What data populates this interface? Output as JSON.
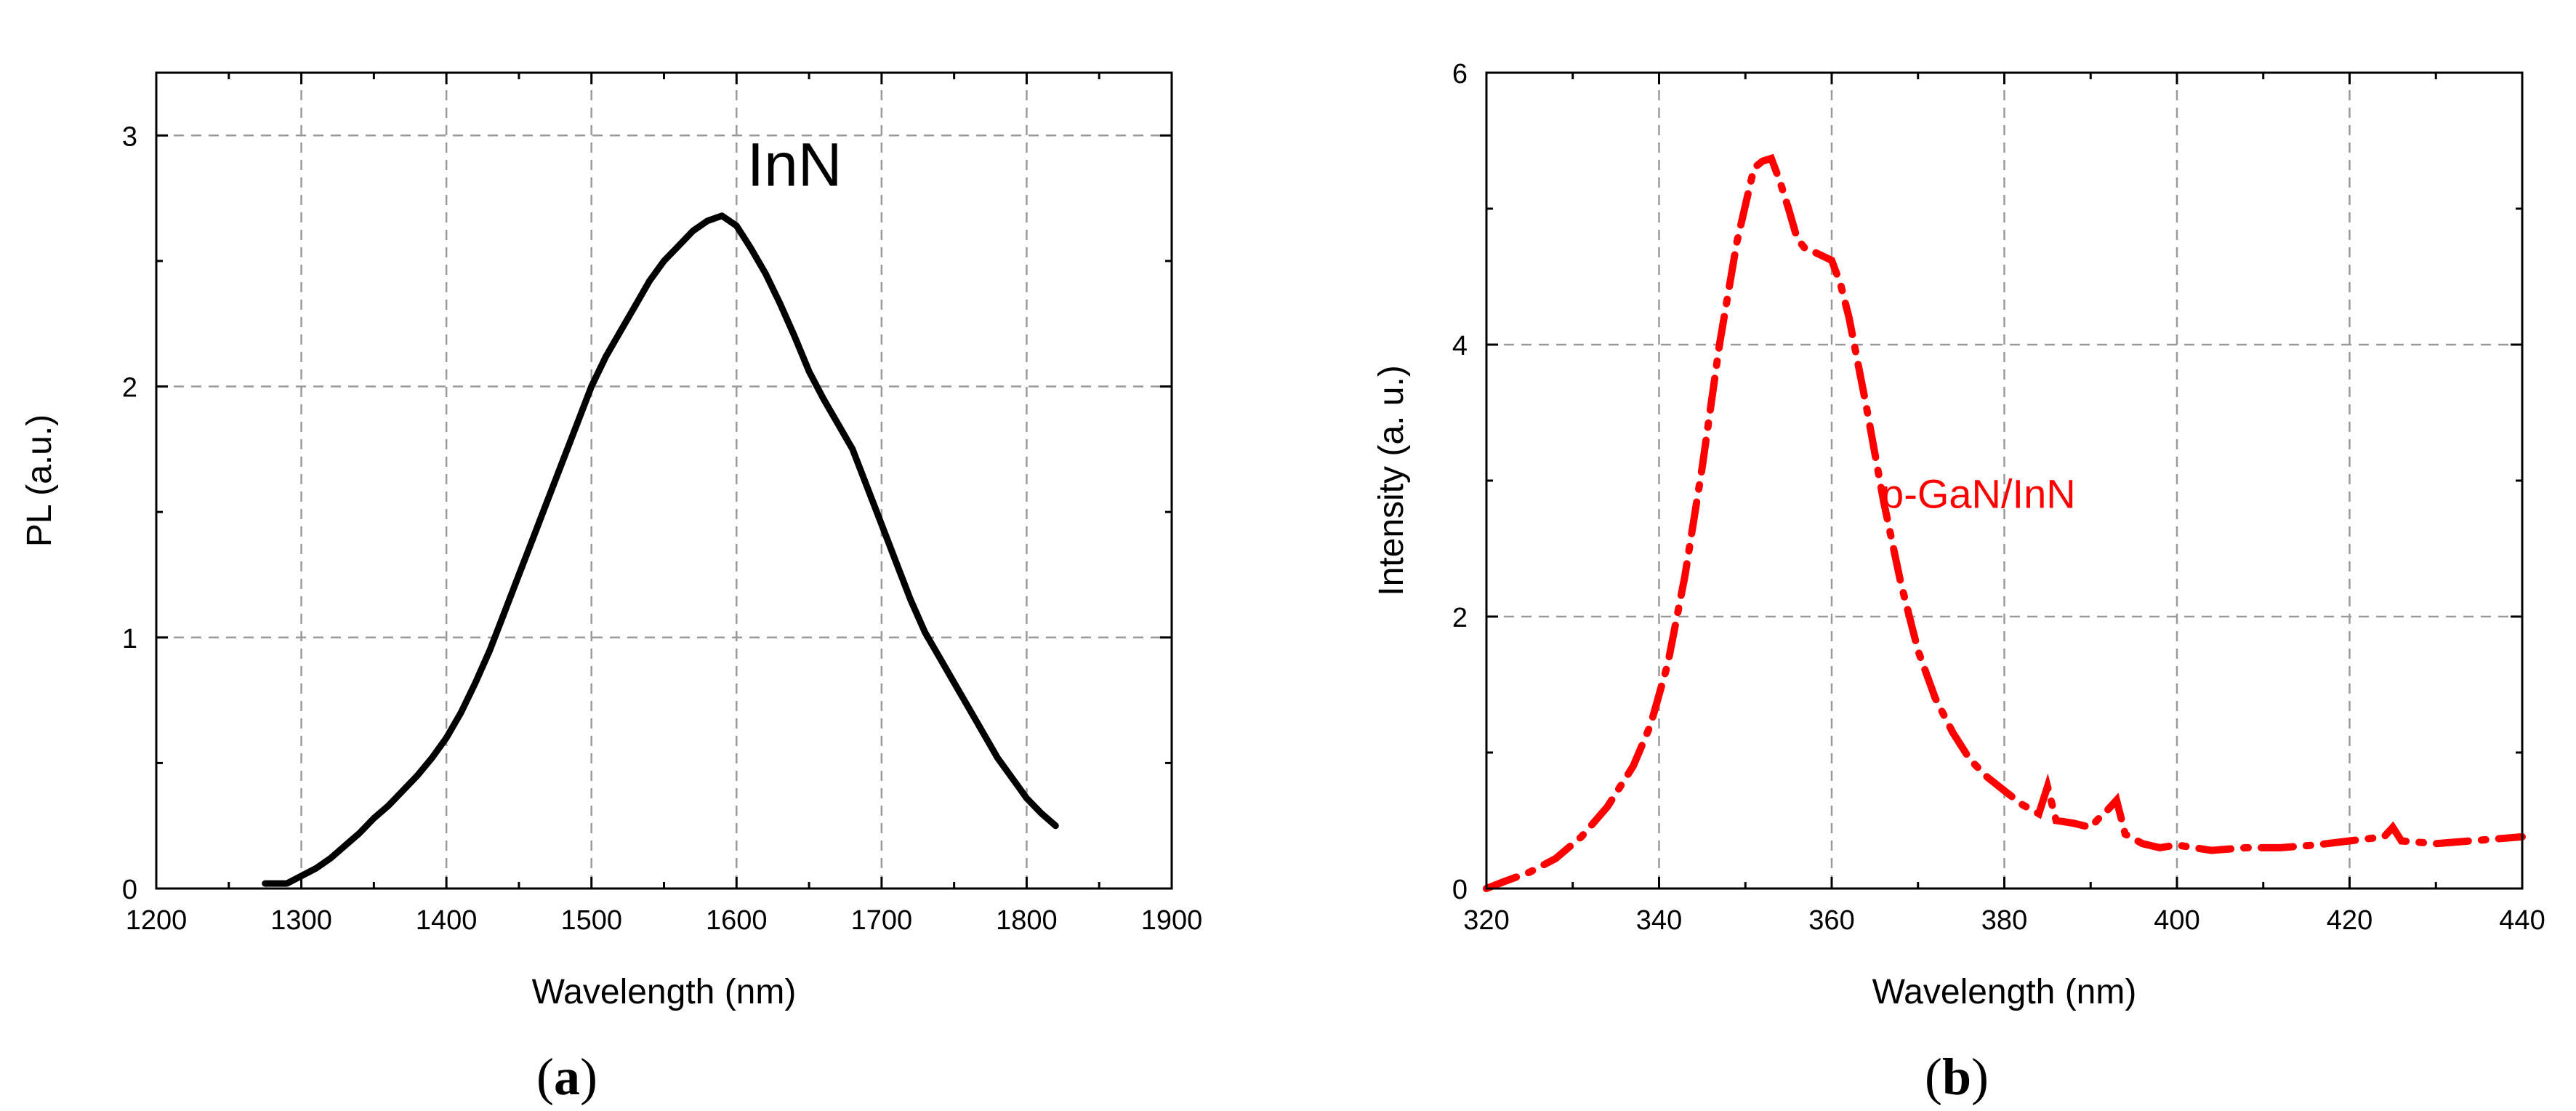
{
  "chart_data": [
    {
      "type": "line",
      "panel_label": "a",
      "title": "",
      "xlabel": "Wavelength (nm)",
      "ylabel": "PL (a.u.)",
      "xlim": [
        1200,
        1900
      ],
      "ylim": [
        0,
        3.25
      ],
      "xticks": [
        1200,
        1300,
        1400,
        1500,
        1600,
        1700,
        1800,
        1900
      ],
      "yticks": [
        0,
        1,
        2,
        3
      ],
      "grid": true,
      "line_color": "#000000",
      "line_style": "solid",
      "annotation": {
        "text": "InN",
        "x": 1640,
        "y": 2.8
      },
      "series": [
        {
          "name": "InN",
          "x": [
            1275,
            1290,
            1300,
            1310,
            1320,
            1330,
            1340,
            1350,
            1360,
            1370,
            1380,
            1390,
            1400,
            1410,
            1420,
            1430,
            1440,
            1450,
            1460,
            1470,
            1480,
            1490,
            1500,
            1510,
            1520,
            1530,
            1540,
            1550,
            1560,
            1570,
            1580,
            1590,
            1600,
            1610,
            1620,
            1630,
            1640,
            1650,
            1660,
            1670,
            1680,
            1690,
            1700,
            1710,
            1720,
            1730,
            1740,
            1750,
            1760,
            1770,
            1780,
            1790,
            1800,
            1810,
            1820
          ],
          "values": [
            0.02,
            0.02,
            0.05,
            0.08,
            0.12,
            0.17,
            0.22,
            0.28,
            0.33,
            0.39,
            0.45,
            0.52,
            0.6,
            0.7,
            0.82,
            0.95,
            1.1,
            1.25,
            1.4,
            1.55,
            1.7,
            1.85,
            2.0,
            2.12,
            2.22,
            2.32,
            2.42,
            2.5,
            2.56,
            2.62,
            2.66,
            2.68,
            2.64,
            2.55,
            2.45,
            2.33,
            2.2,
            2.06,
            1.95,
            1.85,
            1.75,
            1.6,
            1.45,
            1.3,
            1.15,
            1.02,
            0.92,
            0.82,
            0.72,
            0.62,
            0.52,
            0.44,
            0.36,
            0.3,
            0.25
          ]
        }
      ]
    },
    {
      "type": "line",
      "panel_label": "b",
      "title": "",
      "xlabel": "Wavelength (nm)",
      "ylabel": "Intensity (a. u.)",
      "xlim": [
        320,
        440
      ],
      "ylim": [
        0,
        6
      ],
      "xticks": [
        320,
        340,
        360,
        380,
        400,
        420,
        440
      ],
      "yticks": [
        0,
        2,
        4,
        6
      ],
      "grid": true,
      "line_color": "#ff0000",
      "line_style": "dash-dot",
      "annotation": {
        "text": "p-GaN/InN",
        "x": 377,
        "y": 2.8
      },
      "series": [
        {
          "name": "p-GaN/InN",
          "x": [
            320,
            322,
            325,
            328,
            331,
            334,
            337,
            339,
            341,
            343,
            345,
            347,
            349,
            351,
            352,
            353,
            354,
            355,
            356,
            357,
            358,
            359,
            360,
            361,
            362,
            364,
            366,
            368,
            370,
            372,
            374,
            376,
            378,
            380,
            382,
            384,
            385,
            386,
            388,
            390,
            391,
            392,
            393,
            394,
            396,
            398,
            400,
            404,
            408,
            412,
            416,
            420,
            424,
            425,
            426,
            430,
            434,
            438,
            440
          ],
          "values": [
            0.0,
            0.05,
            0.12,
            0.22,
            0.38,
            0.6,
            0.9,
            1.2,
            1.65,
            2.3,
            3.1,
            4.0,
            4.75,
            5.3,
            5.35,
            5.37,
            5.2,
            5.0,
            4.78,
            4.7,
            4.68,
            4.65,
            4.62,
            4.45,
            4.2,
            3.55,
            2.85,
            2.25,
            1.75,
            1.4,
            1.15,
            0.95,
            0.82,
            0.72,
            0.62,
            0.55,
            0.75,
            0.5,
            0.48,
            0.45,
            0.52,
            0.58,
            0.65,
            0.4,
            0.33,
            0.3,
            0.32,
            0.28,
            0.3,
            0.3,
            0.32,
            0.35,
            0.38,
            0.45,
            0.35,
            0.33,
            0.35,
            0.37,
            0.38
          ]
        }
      ]
    }
  ]
}
